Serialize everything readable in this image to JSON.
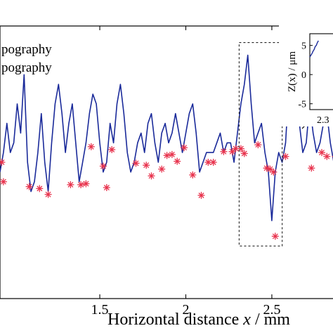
{
  "chart_data": {
    "type": "line",
    "xlabel": "Horizontal distance x / mm",
    "xlim": [
      0.92,
      2.88
    ],
    "ylim": [
      -12,
      16
    ],
    "x_ticks": [
      1.5,
      2,
      2.5
    ],
    "x_tick_labels": [
      "1.5",
      "2",
      "2.5"
    ],
    "grid": false,
    "legend_position": "top-left",
    "legend": [
      "pography",
      "pography"
    ],
    "series": [
      {
        "kind": "line",
        "color": "#1a2a9a",
        "points": [
          [
            0.92,
            1
          ],
          [
            0.94,
            3
          ],
          [
            0.96,
            6
          ],
          [
            0.98,
            3
          ],
          [
            1.0,
            4
          ],
          [
            1.02,
            8
          ],
          [
            1.04,
            5
          ],
          [
            1.06,
            11
          ],
          [
            1.08,
            2
          ],
          [
            1.1,
            -1
          ],
          [
            1.12,
            0
          ],
          [
            1.14,
            3
          ],
          [
            1.16,
            7
          ],
          [
            1.18,
            2
          ],
          [
            1.2,
            -1
          ],
          [
            1.22,
            4
          ],
          [
            1.24,
            8
          ],
          [
            1.26,
            10
          ],
          [
            1.28,
            7
          ],
          [
            1.3,
            3
          ],
          [
            1.32,
            6
          ],
          [
            1.34,
            8
          ],
          [
            1.36,
            4
          ],
          [
            1.38,
            0
          ],
          [
            1.4,
            2
          ],
          [
            1.42,
            4
          ],
          [
            1.44,
            7
          ],
          [
            1.46,
            9
          ],
          [
            1.48,
            8
          ],
          [
            1.5,
            4
          ],
          [
            1.52,
            1
          ],
          [
            1.54,
            2
          ],
          [
            1.56,
            6
          ],
          [
            1.58,
            4
          ],
          [
            1.6,
            8
          ],
          [
            1.62,
            10
          ],
          [
            1.64,
            7
          ],
          [
            1.66,
            3
          ],
          [
            1.68,
            1
          ],
          [
            1.7,
            2
          ],
          [
            1.72,
            4
          ],
          [
            1.74,
            5
          ],
          [
            1.76,
            3
          ],
          [
            1.78,
            6
          ],
          [
            1.8,
            7
          ],
          [
            1.82,
            4
          ],
          [
            1.84,
            2
          ],
          [
            1.86,
            5
          ],
          [
            1.88,
            6
          ],
          [
            1.9,
            4
          ],
          [
            1.92,
            5
          ],
          [
            1.94,
            7
          ],
          [
            1.96,
            5
          ],
          [
            1.98,
            3
          ],
          [
            2.0,
            5
          ],
          [
            2.02,
            7
          ],
          [
            2.04,
            8
          ],
          [
            2.06,
            5
          ],
          [
            2.08,
            1
          ],
          [
            2.1,
            2
          ],
          [
            2.12,
            3
          ],
          [
            2.14,
            3
          ],
          [
            2.16,
            3
          ],
          [
            2.18,
            4
          ],
          [
            2.2,
            5
          ],
          [
            2.22,
            3
          ],
          [
            2.24,
            4
          ],
          [
            2.26,
            4
          ],
          [
            2.28,
            2
          ],
          [
            2.3,
            5
          ],
          [
            2.32,
            8
          ],
          [
            2.34,
            10
          ],
          [
            2.36,
            13
          ],
          [
            2.38,
            8
          ],
          [
            2.4,
            4
          ],
          [
            2.42,
            5
          ],
          [
            2.44,
            6
          ],
          [
            2.46,
            3
          ],
          [
            2.48,
            1
          ],
          [
            2.5,
            -4
          ],
          [
            2.52,
            1
          ],
          [
            2.54,
            3
          ],
          [
            2.56,
            2
          ],
          [
            2.58,
            4
          ],
          [
            2.6,
            10
          ],
          [
            2.62,
            12
          ],
          [
            2.64,
            9
          ],
          [
            2.66,
            6
          ],
          [
            2.68,
            3
          ],
          [
            2.7,
            4
          ],
          [
            2.72,
            8
          ],
          [
            2.74,
            5
          ],
          [
            2.76,
            3
          ],
          [
            2.78,
            4
          ],
          [
            2.8,
            6
          ],
          [
            2.82,
            7
          ],
          [
            2.84,
            4
          ],
          [
            2.86,
            2
          ],
          [
            2.88,
            3
          ]
        ]
      },
      {
        "kind": "markers",
        "color": "#e8344e",
        "points": [
          [
            0.93,
            2
          ],
          [
            0.94,
            0
          ],
          [
            1.09,
            -0.5
          ],
          [
            1.15,
            -0.7
          ],
          [
            1.2,
            -1.3
          ],
          [
            1.33,
            -0.3
          ],
          [
            1.39,
            -0.3
          ],
          [
            1.42,
            -0.2
          ],
          [
            1.45,
            3.6
          ],
          [
            1.52,
            1.6
          ],
          [
            1.54,
            -0.6
          ],
          [
            1.57,
            3.3
          ],
          [
            1.71,
            1.9
          ],
          [
            1.77,
            1.7
          ],
          [
            1.8,
            0.6
          ],
          [
            1.86,
            1.3
          ],
          [
            1.89,
            2.7
          ],
          [
            1.92,
            2.8
          ],
          [
            1.95,
            2.1
          ],
          [
            1.99,
            3.5
          ],
          [
            2.04,
            0.7
          ],
          [
            2.09,
            -1.4
          ],
          [
            2.13,
            2.0
          ],
          [
            2.16,
            2.0
          ],
          [
            2.22,
            3.1
          ],
          [
            2.27,
            3.1
          ],
          [
            2.29,
            3.4
          ],
          [
            2.32,
            3.4
          ],
          [
            2.34,
            2.9
          ],
          [
            2.42,
            3.8
          ],
          [
            2.47,
            1.4
          ],
          [
            2.49,
            1.3
          ],
          [
            2.51,
            1.0
          ],
          [
            2.52,
            -5.6
          ],
          [
            2.58,
            2.6
          ],
          [
            2.73,
            1.4
          ],
          [
            2.79,
            3.0
          ],
          [
            2.82,
            2.6
          ],
          [
            2.87,
            2.6
          ]
        ]
      }
    ],
    "annotation_box": {
      "x": [
        2.31,
        2.56
      ],
      "y": [
        -6.6,
        14.3
      ]
    },
    "inset": {
      "ylabel": "Z(x) / μm",
      "y_tick_labels": [
        "5",
        "0",
        "-5"
      ],
      "x_tick_label": "2.3",
      "ylim": [
        -6,
        7
      ],
      "xlim": [
        2.3,
        2.56
      ],
      "line": [
        [
          2.3,
          3
        ],
        [
          2.31,
          3.3
        ],
        [
          2.32,
          3.6
        ],
        [
          2.33,
          4.0
        ],
        [
          2.34,
          4.3
        ],
        [
          2.35,
          4.8
        ],
        [
          2.36,
          5.0
        ],
        [
          2.37,
          5.5
        ],
        [
          2.38,
          5.8
        ]
      ]
    }
  }
}
